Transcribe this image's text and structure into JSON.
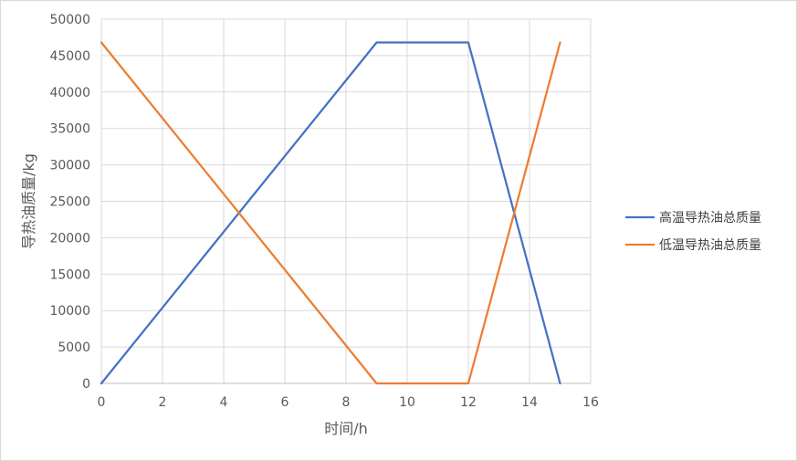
{
  "chart_data": {
    "type": "line",
    "title": "",
    "xlabel": "时间/h",
    "ylabel": "导热油质量/kg",
    "xlim": [
      0,
      16
    ],
    "ylim": [
      0,
      50000
    ],
    "x_ticks": [
      "0",
      "2",
      "4",
      "6",
      "8",
      "10",
      "12",
      "14",
      "16"
    ],
    "y_ticks": [
      "0",
      "5000",
      "10000",
      "15000",
      "20000",
      "25000",
      "30000",
      "35000",
      "40000",
      "45000",
      "50000"
    ],
    "grid": true,
    "legend_position": "right",
    "series": [
      {
        "name": "高温导热油总质量",
        "color": "#4472c4",
        "points": [
          [
            0,
            0
          ],
          [
            9,
            46800
          ],
          [
            12,
            46800
          ],
          [
            15,
            0
          ]
        ]
      },
      {
        "name": "低温导热油总质量",
        "color": "#ed7d31",
        "points": [
          [
            0,
            46800
          ],
          [
            9,
            0
          ],
          [
            12,
            0
          ],
          [
            15,
            46800
          ]
        ]
      }
    ]
  }
}
